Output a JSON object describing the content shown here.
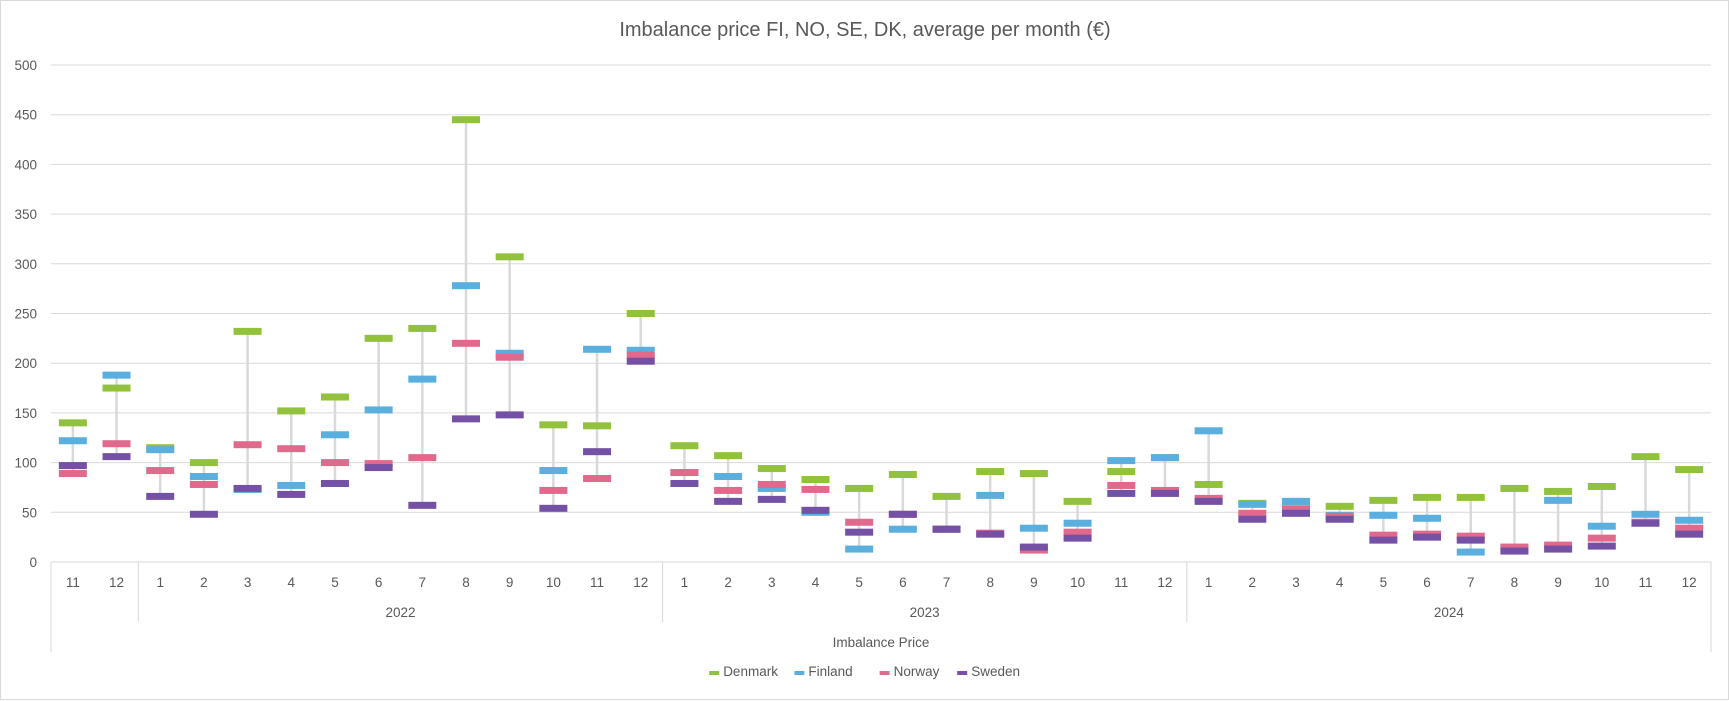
{
  "chart_data": {
    "type": "stock-marker",
    "title": "Imbalance price FI, NO, SE, DK, average per month (€)",
    "xlabel": "Imbalance Price",
    "ylabel": "",
    "ylim": [
      0,
      500
    ],
    "yticks": [
      0,
      50,
      100,
      150,
      200,
      250,
      300,
      350,
      400,
      450,
      500
    ],
    "grid": true,
    "legend_position": "bottom",
    "groups": [
      {
        "label": "",
        "months": [
          "11",
          "12"
        ]
      },
      {
        "label": "2022",
        "months": [
          "1",
          "2",
          "3",
          "4",
          "5",
          "6",
          "7",
          "8",
          "9",
          "10",
          "11",
          "12"
        ]
      },
      {
        "label": "2023",
        "months": [
          "1",
          "2",
          "3",
          "4",
          "5",
          "6",
          "7",
          "8",
          "9",
          "10",
          "11",
          "12"
        ]
      },
      {
        "label": "2024",
        "months": [
          "1",
          "2",
          "3",
          "4",
          "5",
          "6",
          "7",
          "8",
          "9",
          "10",
          "11",
          "12"
        ]
      }
    ],
    "series": [
      {
        "name": "Denmark",
        "color": "#92c13d",
        "values": [
          140,
          175,
          115,
          100,
          232,
          152,
          166,
          225,
          235,
          445,
          307,
          138,
          137,
          250,
          117,
          107,
          94,
          83,
          74,
          88,
          66,
          91,
          89,
          61,
          91,
          105,
          78,
          59,
          60,
          56,
          62,
          65,
          65,
          74,
          71,
          76,
          106,
          93
        ]
      },
      {
        "name": "Finland",
        "color": "#5aafde",
        "values": [
          122,
          188,
          113,
          86,
          73,
          77,
          128,
          153,
          184,
          278,
          210,
          92,
          214,
          213,
          90,
          86,
          74,
          50,
          13,
          33,
          33,
          67,
          34,
          39,
          102,
          105,
          132,
          58,
          61,
          47,
          47,
          44,
          10,
          13,
          62,
          36,
          48,
          42
        ]
      },
      {
        "name": "Norway",
        "color": "#e0698c",
        "values": [
          89,
          119,
          92,
          78,
          118,
          114,
          100,
          99,
          105,
          220,
          206,
          72,
          84,
          208,
          90,
          72,
          78,
          73,
          40,
          48,
          33,
          29,
          12,
          30,
          77,
          72,
          64,
          49,
          53,
          46,
          27,
          28,
          26,
          15,
          17,
          24,
          40,
          34
        ]
      },
      {
        "name": "Sweden",
        "color": "#7451a5",
        "values": [
          97,
          106,
          66,
          48,
          74,
          68,
          79,
          95,
          57,
          144,
          148,
          54,
          111,
          202,
          79,
          61,
          63,
          52,
          30,
          48,
          33,
          28,
          15,
          24,
          69,
          69,
          61,
          43,
          49,
          43,
          22,
          25,
          22,
          11,
          13,
          16,
          39,
          28
        ]
      }
    ]
  }
}
